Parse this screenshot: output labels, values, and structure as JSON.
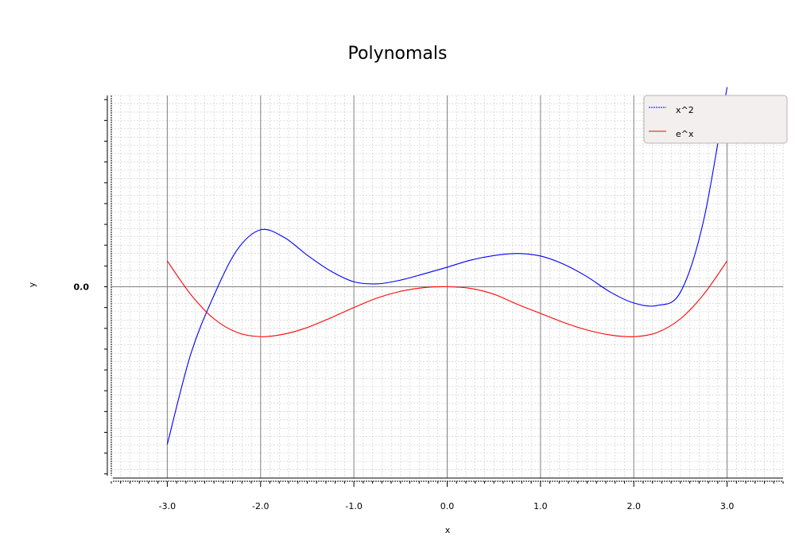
{
  "chart_data": {
    "type": "line",
    "title": "Polynomals",
    "xlabel": "x",
    "ylabel": "y",
    "xlim": [
      -3.6,
      3.6
    ],
    "ylim": [
      -4.6,
      4.6
    ],
    "x_ticks": [
      -3.0,
      -2.0,
      -1.0,
      0.0,
      1.0,
      2.0,
      3.0
    ],
    "x_tick_labels": [
      "-3.0",
      "-2.0",
      "-1.0",
      "0.0",
      "1.0",
      "2.0",
      "3.0"
    ],
    "y_tick_label_zero": "0.0",
    "grid": true,
    "legend_position": "top-right",
    "series": [
      {
        "name": "x^2",
        "color": "#0000ff",
        "legend_style": "dashed",
        "x": [
          -3.0,
          -2.75,
          -2.5,
          -2.25,
          -2.0,
          -1.75,
          -1.5,
          -1.25,
          -1.0,
          -0.75,
          -0.5,
          -0.25,
          0.0,
          0.25,
          0.5,
          0.75,
          1.0,
          1.25,
          1.5,
          1.75,
          2.0,
          2.25,
          2.5,
          2.75,
          3.0
        ],
        "y": [
          -3.79,
          -1.63,
          -0.21,
          0.89,
          1.37,
          1.19,
          0.76,
          0.38,
          0.12,
          0.07,
          0.16,
          0.31,
          0.47,
          0.64,
          0.75,
          0.8,
          0.74,
          0.54,
          0.24,
          -0.13,
          -0.39,
          -0.45,
          -0.13,
          1.61,
          4.8
        ]
      },
      {
        "name": "e^x",
        "color": "#ff0000",
        "legend_style": "solid",
        "x": [
          -3.0,
          -2.75,
          -2.5,
          -2.25,
          -2.0,
          -1.75,
          -1.5,
          -1.25,
          -1.0,
          -0.75,
          -0.5,
          -0.25,
          0.0,
          0.25,
          0.5,
          0.75,
          1.0,
          1.25,
          1.5,
          1.75,
          2.0,
          2.25,
          2.5,
          2.75,
          3.0
        ],
        "y": [
          0.62,
          -0.18,
          -0.77,
          -1.1,
          -1.2,
          -1.14,
          -0.98,
          -0.75,
          -0.5,
          -0.27,
          -0.11,
          -0.02,
          0.0,
          -0.04,
          -0.18,
          -0.42,
          -0.64,
          -0.86,
          -1.04,
          -1.16,
          -1.2,
          -1.1,
          -0.77,
          -0.18,
          0.62
        ]
      }
    ]
  }
}
